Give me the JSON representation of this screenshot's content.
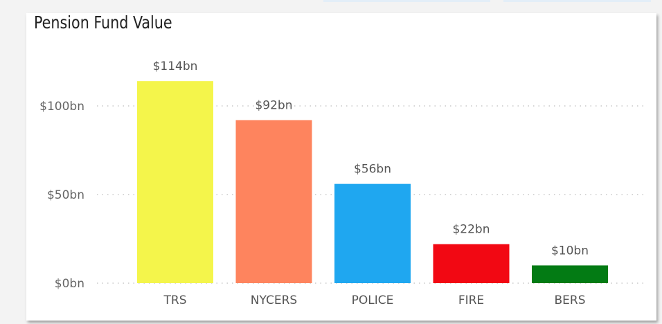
{
  "chart_data": {
    "type": "bar",
    "title": "Pension Fund Value",
    "categories": [
      "TRS",
      "NYCERS",
      "POLICE",
      "FIRE",
      "BERS"
    ],
    "values": [
      114,
      92,
      56,
      22,
      10
    ],
    "data_labels": [
      "$114bn",
      "$92bn",
      "$56bn",
      "$22bn",
      "$10bn"
    ],
    "colors": [
      "#f4f54b",
      "#fe845e",
      "#1fa7f0",
      "#f20813",
      "#037b14"
    ],
    "yticks": [
      0,
      50,
      100
    ],
    "ytick_labels": [
      "$0bn",
      "$50bn",
      "$100bn"
    ],
    "ylim": [
      0,
      120
    ],
    "xlabel": "",
    "ylabel": "",
    "grid": "dotted horizontal",
    "legend": "none"
  }
}
